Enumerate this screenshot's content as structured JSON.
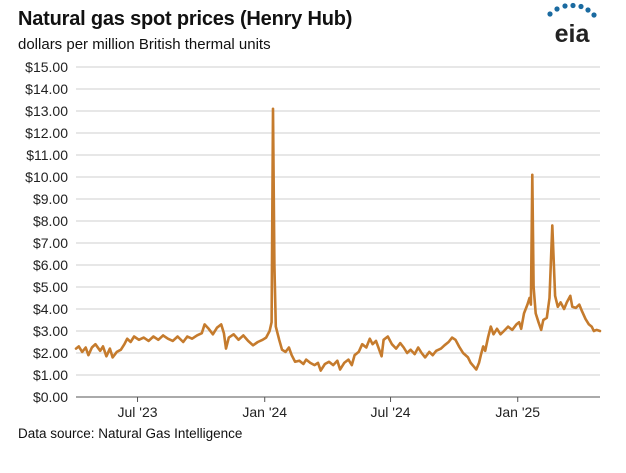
{
  "header": {
    "title": "Natural gas spot prices (Henry Hub)",
    "subtitle": "dollars per million British thermal units"
  },
  "logo": {
    "text": "eia",
    "icon": "eia-logo-icon",
    "color": "#1a6aa0"
  },
  "footer": {
    "source": "Data source: Natural Gas Intelligence"
  },
  "chart_data": {
    "type": "line",
    "title": "Natural gas spot prices (Henry Hub)",
    "ylabel": "dollars per million British thermal units",
    "ylim": [
      0,
      15
    ],
    "xlim": [
      "2023-04-03",
      "2025-04-30"
    ],
    "grid": true,
    "y_ticks": [
      "$0.00",
      "$1.00",
      "$2.00",
      "$3.00",
      "$4.00",
      "$5.00",
      "$6.00",
      "$7.00",
      "$8.00",
      "$9.00",
      "$10.00",
      "$11.00",
      "$12.00",
      "$13.00",
      "$14.00",
      "$15.00"
    ],
    "x_ticks": [
      {
        "date": "2023-07-01",
        "label": "Jul '23"
      },
      {
        "date": "2024-01-01",
        "label": "Jan '24"
      },
      {
        "date": "2024-07-01",
        "label": "Jul '24"
      },
      {
        "date": "2025-01-01",
        "label": "Jan '25"
      }
    ],
    "line_color": "#c57b2d",
    "series": [
      {
        "points": [
          [
            "2023-04-03",
            2.2
          ],
          [
            "2023-04-07",
            2.3
          ],
          [
            "2023-04-12",
            2.05
          ],
          [
            "2023-04-17",
            2.25
          ],
          [
            "2023-04-21",
            1.9
          ],
          [
            "2023-04-26",
            2.25
          ],
          [
            "2023-05-01",
            2.4
          ],
          [
            "2023-05-08",
            2.1
          ],
          [
            "2023-05-12",
            2.3
          ],
          [
            "2023-05-17",
            1.85
          ],
          [
            "2023-05-22",
            2.2
          ],
          [
            "2023-05-26",
            1.8
          ],
          [
            "2023-06-01",
            2.05
          ],
          [
            "2023-06-07",
            2.15
          ],
          [
            "2023-06-12",
            2.4
          ],
          [
            "2023-06-16",
            2.65
          ],
          [
            "2023-06-21",
            2.5
          ],
          [
            "2023-06-26",
            2.75
          ],
          [
            "2023-07-03",
            2.6
          ],
          [
            "2023-07-10",
            2.7
          ],
          [
            "2023-07-17",
            2.55
          ],
          [
            "2023-07-24",
            2.75
          ],
          [
            "2023-07-31",
            2.6
          ],
          [
            "2023-08-07",
            2.8
          ],
          [
            "2023-08-14",
            2.65
          ],
          [
            "2023-08-21",
            2.55
          ],
          [
            "2023-08-28",
            2.75
          ],
          [
            "2023-09-05",
            2.5
          ],
          [
            "2023-09-11",
            2.75
          ],
          [
            "2023-09-18",
            2.65
          ],
          [
            "2023-09-25",
            2.8
          ],
          [
            "2023-10-02",
            2.9
          ],
          [
            "2023-10-06",
            3.3
          ],
          [
            "2023-10-12",
            3.1
          ],
          [
            "2023-10-18",
            2.85
          ],
          [
            "2023-10-24",
            3.15
          ],
          [
            "2023-10-30",
            3.3
          ],
          [
            "2023-11-03",
            2.9
          ],
          [
            "2023-11-06",
            2.2
          ],
          [
            "2023-11-10",
            2.7
          ],
          [
            "2023-11-17",
            2.85
          ],
          [
            "2023-11-24",
            2.6
          ],
          [
            "2023-12-01",
            2.8
          ],
          [
            "2023-12-08",
            2.55
          ],
          [
            "2023-12-15",
            2.35
          ],
          [
            "2023-12-22",
            2.5
          ],
          [
            "2023-12-29",
            2.6
          ],
          [
            "2024-01-03",
            2.7
          ],
          [
            "2024-01-08",
            3.0
          ],
          [
            "2024-01-11",
            3.4
          ],
          [
            "2024-01-13",
            13.1
          ],
          [
            "2024-01-15",
            6.0
          ],
          [
            "2024-01-17",
            3.2
          ],
          [
            "2024-01-22",
            2.6
          ],
          [
            "2024-01-26",
            2.15
          ],
          [
            "2024-01-31",
            2.05
          ],
          [
            "2024-02-05",
            2.25
          ],
          [
            "2024-02-09",
            1.9
          ],
          [
            "2024-02-14",
            1.6
          ],
          [
            "2024-02-20",
            1.65
          ],
          [
            "2024-02-26",
            1.5
          ],
          [
            "2024-03-01",
            1.7
          ],
          [
            "2024-03-07",
            1.55
          ],
          [
            "2024-03-13",
            1.45
          ],
          [
            "2024-03-18",
            1.55
          ],
          [
            "2024-03-22",
            1.2
          ],
          [
            "2024-03-28",
            1.5
          ],
          [
            "2024-04-03",
            1.6
          ],
          [
            "2024-04-09",
            1.45
          ],
          [
            "2024-04-15",
            1.65
          ],
          [
            "2024-04-19",
            1.25
          ],
          [
            "2024-04-25",
            1.55
          ],
          [
            "2024-05-01",
            1.7
          ],
          [
            "2024-05-06",
            1.45
          ],
          [
            "2024-05-10",
            1.9
          ],
          [
            "2024-05-16",
            2.05
          ],
          [
            "2024-05-21",
            2.4
          ],
          [
            "2024-05-27",
            2.25
          ],
          [
            "2024-06-01",
            2.65
          ],
          [
            "2024-06-05",
            2.4
          ],
          [
            "2024-06-10",
            2.55
          ],
          [
            "2024-06-14",
            2.2
          ],
          [
            "2024-06-18",
            1.85
          ],
          [
            "2024-06-21",
            2.6
          ],
          [
            "2024-06-27",
            2.75
          ],
          [
            "2024-07-03",
            2.4
          ],
          [
            "2024-07-09",
            2.2
          ],
          [
            "2024-07-15",
            2.45
          ],
          [
            "2024-07-20",
            2.25
          ],
          [
            "2024-07-25",
            2.0
          ],
          [
            "2024-07-30",
            2.15
          ],
          [
            "2024-08-05",
            1.95
          ],
          [
            "2024-08-10",
            2.25
          ],
          [
            "2024-08-15",
            2.0
          ],
          [
            "2024-08-20",
            1.8
          ],
          [
            "2024-08-26",
            2.05
          ],
          [
            "2024-08-31",
            1.9
          ],
          [
            "2024-09-05",
            2.1
          ],
          [
            "2024-09-12",
            2.2
          ],
          [
            "2024-09-17",
            2.35
          ],
          [
            "2024-09-23",
            2.5
          ],
          [
            "2024-09-28",
            2.7
          ],
          [
            "2024-10-03",
            2.6
          ],
          [
            "2024-10-08",
            2.3
          ],
          [
            "2024-10-14",
            2.0
          ],
          [
            "2024-10-21",
            1.8
          ],
          [
            "2024-10-25",
            1.55
          ],
          [
            "2024-10-29",
            1.4
          ],
          [
            "2024-11-02",
            1.25
          ],
          [
            "2024-11-06",
            1.55
          ],
          [
            "2024-11-09",
            1.95
          ],
          [
            "2024-11-12",
            2.3
          ],
          [
            "2024-11-15",
            2.1
          ],
          [
            "2024-11-19",
            2.7
          ],
          [
            "2024-11-23",
            3.2
          ],
          [
            "2024-11-27",
            2.85
          ],
          [
            "2024-12-02",
            3.1
          ],
          [
            "2024-12-07",
            2.85
          ],
          [
            "2024-12-12",
            3.0
          ],
          [
            "2024-12-18",
            3.2
          ],
          [
            "2024-12-24",
            3.05
          ],
          [
            "2024-12-30",
            3.3
          ],
          [
            "2025-01-03",
            3.4
          ],
          [
            "2025-01-06",
            3.1
          ],
          [
            "2025-01-10",
            3.8
          ],
          [
            "2025-01-15",
            4.2
          ],
          [
            "2025-01-18",
            4.5
          ],
          [
            "2025-01-20",
            4.2
          ],
          [
            "2025-01-22",
            10.1
          ],
          [
            "2025-01-24",
            5.0
          ],
          [
            "2025-01-27",
            3.8
          ],
          [
            "2025-01-31",
            3.4
          ],
          [
            "2025-02-04",
            3.05
          ],
          [
            "2025-02-07",
            3.5
          ],
          [
            "2025-02-12",
            3.6
          ],
          [
            "2025-02-16",
            4.5
          ],
          [
            "2025-02-20",
            7.8
          ],
          [
            "2025-02-24",
            4.6
          ],
          [
            "2025-02-28",
            4.1
          ],
          [
            "2025-03-04",
            4.3
          ],
          [
            "2025-03-09",
            4.0
          ],
          [
            "2025-03-13",
            4.3
          ],
          [
            "2025-03-18",
            4.6
          ],
          [
            "2025-03-21",
            4.1
          ],
          [
            "2025-03-26",
            4.05
          ],
          [
            "2025-03-31",
            4.2
          ],
          [
            "2025-04-04",
            3.9
          ],
          [
            "2025-04-09",
            3.55
          ],
          [
            "2025-04-14",
            3.3
          ],
          [
            "2025-04-18",
            3.2
          ],
          [
            "2025-04-21",
            3.0
          ],
          [
            "2025-04-25",
            3.05
          ],
          [
            "2025-04-30",
            3.0
          ]
        ]
      }
    ]
  }
}
